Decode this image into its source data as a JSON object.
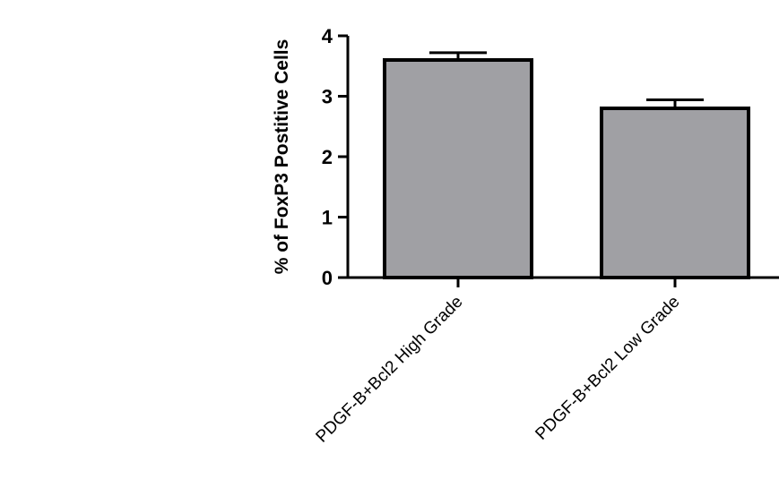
{
  "chart_data": {
    "type": "bar",
    "title": "",
    "xlabel": "",
    "ylabel": "% of FoxP3 Postitive Cells",
    "ylim": [
      0,
      4
    ],
    "yticks": [
      0,
      1,
      2,
      3,
      4
    ],
    "categories": [
      "PDGF-B+Bcl2 High Grade",
      "PDGF-B+Bcl2 Low Grade"
    ],
    "values": [
      3.6,
      2.8
    ],
    "errors": [
      0.12,
      0.14
    ],
    "bar_color": "#a0a0a4",
    "edge_color": "#000000",
    "grid": false,
    "legend": "none"
  }
}
